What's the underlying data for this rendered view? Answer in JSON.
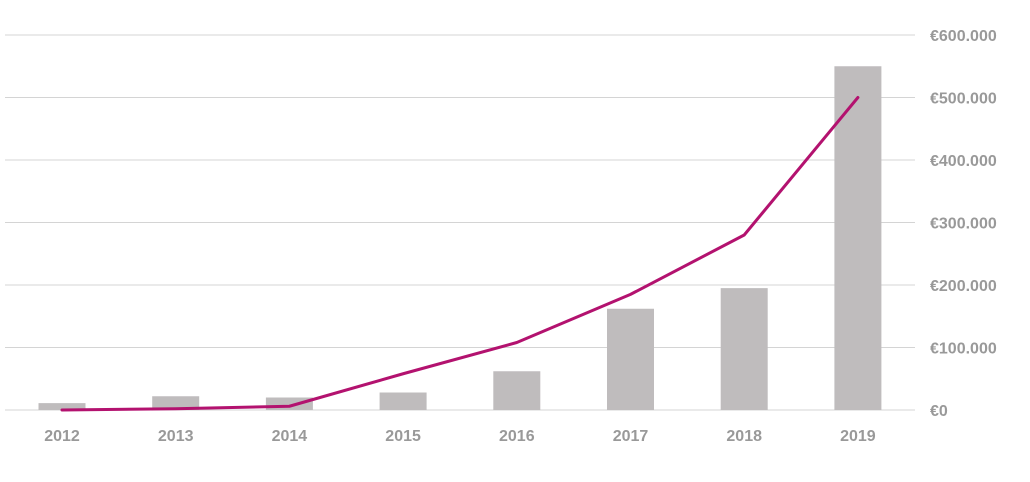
{
  "chart_data": {
    "type": "bar",
    "categories": [
      "2012",
      "2013",
      "2014",
      "2015",
      "2016",
      "2017",
      "2018",
      "2019"
    ],
    "series": [
      {
        "type": "bar",
        "values": [
          11000,
          22000,
          20000,
          28000,
          62000,
          162000,
          195000,
          550000
        ]
      },
      {
        "type": "line",
        "values": [
          0,
          2000,
          6000,
          58000,
          108000,
          185000,
          280000,
          500000
        ]
      }
    ],
    "y_tick_labels": [
      "€0",
      "€100.000",
      "€200.000",
      "€300.000",
      "€400.000",
      "€500.000",
      "€600.000"
    ],
    "y_tick_values": [
      0,
      100000,
      200000,
      300000,
      400000,
      500000,
      600000
    ],
    "ylim": [
      0,
      600000
    ],
    "y_axis_position": "right",
    "grid": true,
    "legend": "none",
    "colors": {
      "bar": "#bfbcbd",
      "line": "#b3126f",
      "grid": "#d4d4d4",
      "label": "#999999"
    }
  }
}
